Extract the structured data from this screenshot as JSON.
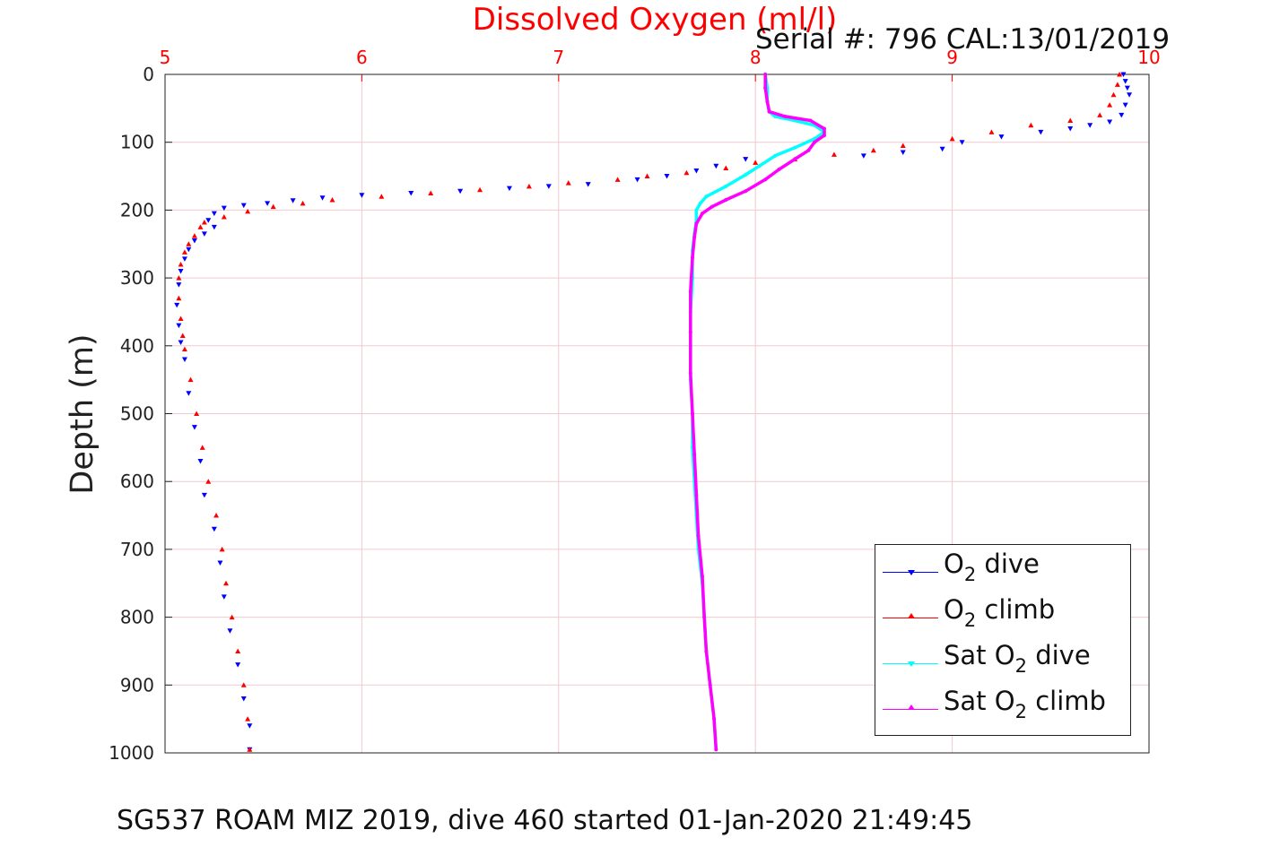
{
  "chart_data": {
    "type": "scatter",
    "title": "Dissolved Oxygen (ml/l)",
    "annotation": "Serial #: 796  CAL:13/01/2019",
    "caption": "SG537 ROAM MIZ 2019, dive 460 started 01-Jan-2020 21:49:45",
    "ylabel": "Depth (m)",
    "xlim": [
      5,
      10
    ],
    "ylim": [
      0,
      1000
    ],
    "y_reversed": true,
    "x_axis_location": "top",
    "grid": true,
    "xticks": [
      "5",
      "6",
      "7",
      "8",
      "9",
      "10"
    ],
    "yticks": [
      "0",
      "100",
      "200",
      "300",
      "400",
      "500",
      "600",
      "700",
      "800",
      "900",
      "1000"
    ],
    "legend": {
      "placement": "lower-right",
      "entries": [
        {
          "prefix": "O",
          "sub": "2",
          "suffix": " dive"
        },
        {
          "prefix": "O",
          "sub": "2",
          "suffix": " climb"
        },
        {
          "prefix": "Sat O",
          "sub": "2",
          "suffix": " dive"
        },
        {
          "prefix": "Sat O",
          "sub": "2",
          "suffix": " climb"
        }
      ]
    },
    "colors": {
      "o2_dive": "#0000ff",
      "o2_climb": "#ff0000",
      "sat_dive": "#00ffff",
      "sat_climb": "#ff00ff",
      "title": "#ff0000",
      "xtick": "#ff0000",
      "grid": "#f2c9cf"
    },
    "series": [
      {
        "name": "O2 dive",
        "color": "#0000ff",
        "marker": "triangle-down",
        "points": [
          [
            9.87,
            0
          ],
          [
            9.88,
            10
          ],
          [
            9.89,
            20
          ],
          [
            9.9,
            30
          ],
          [
            9.88,
            45
          ],
          [
            9.86,
            60
          ],
          [
            9.8,
            70
          ],
          [
            9.7,
            75
          ],
          [
            9.6,
            80
          ],
          [
            9.45,
            85
          ],
          [
            9.25,
            92
          ],
          [
            9.05,
            100
          ],
          [
            8.95,
            110
          ],
          [
            8.75,
            115
          ],
          [
            8.55,
            120
          ],
          [
            7.95,
            125
          ],
          [
            7.8,
            135
          ],
          [
            7.7,
            142
          ],
          [
            7.55,
            150
          ],
          [
            7.4,
            155
          ],
          [
            7.15,
            162
          ],
          [
            6.95,
            165
          ],
          [
            6.75,
            168
          ],
          [
            6.5,
            172
          ],
          [
            6.25,
            175
          ],
          [
            6.0,
            178
          ],
          [
            5.8,
            182
          ],
          [
            5.65,
            186
          ],
          [
            5.52,
            190
          ],
          [
            5.4,
            193
          ],
          [
            5.3,
            197
          ],
          [
            5.25,
            205
          ],
          [
            5.22,
            215
          ],
          [
            5.25,
            225
          ],
          [
            5.2,
            235
          ],
          [
            5.15,
            245
          ],
          [
            5.12,
            258
          ],
          [
            5.1,
            272
          ],
          [
            5.08,
            290
          ],
          [
            5.07,
            310
          ],
          [
            5.06,
            340
          ],
          [
            5.07,
            370
          ],
          [
            5.08,
            395
          ],
          [
            5.1,
            420
          ],
          [
            5.12,
            470
          ],
          [
            5.15,
            520
          ],
          [
            5.18,
            570
          ],
          [
            5.2,
            620
          ],
          [
            5.25,
            670
          ],
          [
            5.28,
            720
          ],
          [
            5.3,
            770
          ],
          [
            5.33,
            820
          ],
          [
            5.37,
            870
          ],
          [
            5.4,
            920
          ],
          [
            5.43,
            960
          ],
          [
            5.43,
            995
          ]
        ]
      },
      {
        "name": "O2 climb",
        "color": "#ff0000",
        "marker": "triangle-up",
        "points": [
          [
            9.85,
            0
          ],
          [
            9.84,
            15
          ],
          [
            9.82,
            30
          ],
          [
            9.8,
            45
          ],
          [
            9.75,
            60
          ],
          [
            9.6,
            68
          ],
          [
            9.4,
            75
          ],
          [
            9.2,
            85
          ],
          [
            9.0,
            95
          ],
          [
            8.75,
            105
          ],
          [
            8.6,
            112
          ],
          [
            8.4,
            118
          ],
          [
            8.2,
            125
          ],
          [
            8.0,
            130
          ],
          [
            7.85,
            138
          ],
          [
            7.65,
            145
          ],
          [
            7.45,
            150
          ],
          [
            7.3,
            155
          ],
          [
            7.05,
            160
          ],
          [
            6.85,
            165
          ],
          [
            6.6,
            170
          ],
          [
            6.35,
            175
          ],
          [
            6.1,
            180
          ],
          [
            5.85,
            185
          ],
          [
            5.7,
            190
          ],
          [
            5.55,
            195
          ],
          [
            5.42,
            202
          ],
          [
            5.3,
            210
          ],
          [
            5.2,
            218
          ],
          [
            5.18,
            225
          ],
          [
            5.15,
            238
          ],
          [
            5.12,
            250
          ],
          [
            5.1,
            262
          ],
          [
            5.08,
            280
          ],
          [
            5.07,
            300
          ],
          [
            5.07,
            330
          ],
          [
            5.08,
            360
          ],
          [
            5.09,
            385
          ],
          [
            5.1,
            405
          ],
          [
            5.13,
            450
          ],
          [
            5.16,
            500
          ],
          [
            5.19,
            550
          ],
          [
            5.22,
            600
          ],
          [
            5.26,
            650
          ],
          [
            5.29,
            700
          ],
          [
            5.31,
            750
          ],
          [
            5.34,
            800
          ],
          [
            5.37,
            850
          ],
          [
            5.4,
            900
          ],
          [
            5.42,
            950
          ],
          [
            5.43,
            995
          ]
        ]
      },
      {
        "name": "Sat O2 dive",
        "color": "#00ffff",
        "marker": "line",
        "points": [
          [
            8.05,
            0
          ],
          [
            8.06,
            20
          ],
          [
            8.06,
            40
          ],
          [
            8.07,
            55
          ],
          [
            8.1,
            62
          ],
          [
            8.2,
            68
          ],
          [
            8.3,
            75
          ],
          [
            8.35,
            85
          ],
          [
            8.3,
            95
          ],
          [
            8.2,
            108
          ],
          [
            8.1,
            120
          ],
          [
            8.02,
            135
          ],
          [
            7.95,
            148
          ],
          [
            7.85,
            165
          ],
          [
            7.75,
            180
          ],
          [
            7.72,
            190
          ],
          [
            7.7,
            200
          ],
          [
            7.7,
            215
          ],
          [
            7.69,
            235
          ],
          [
            7.68,
            260
          ],
          [
            7.68,
            300
          ],
          [
            7.67,
            350
          ],
          [
            7.67,
            400
          ],
          [
            7.67,
            450
          ],
          [
            7.68,
            500
          ],
          [
            7.68,
            550
          ],
          [
            7.69,
            600
          ],
          [
            7.7,
            650
          ],
          [
            7.71,
            700
          ],
          [
            7.73,
            750
          ],
          [
            7.74,
            800
          ],
          [
            7.75,
            850
          ],
          [
            7.77,
            900
          ],
          [
            7.79,
            950
          ],
          [
            7.8,
            995
          ]
        ]
      },
      {
        "name": "Sat O2 climb",
        "color": "#ff00ff",
        "marker": "line",
        "points": [
          [
            8.05,
            0
          ],
          [
            8.05,
            20
          ],
          [
            8.06,
            40
          ],
          [
            8.07,
            55
          ],
          [
            8.15,
            62
          ],
          [
            8.28,
            68
          ],
          [
            8.35,
            80
          ],
          [
            8.35,
            90
          ],
          [
            8.3,
            100
          ],
          [
            8.27,
            112
          ],
          [
            8.2,
            125
          ],
          [
            8.12,
            140
          ],
          [
            8.05,
            155
          ],
          [
            7.95,
            172
          ],
          [
            7.85,
            185
          ],
          [
            7.78,
            195
          ],
          [
            7.73,
            205
          ],
          [
            7.7,
            220
          ],
          [
            7.69,
            240
          ],
          [
            7.68,
            270
          ],
          [
            7.67,
            320
          ],
          [
            7.67,
            380
          ],
          [
            7.67,
            440
          ],
          [
            7.68,
            500
          ],
          [
            7.69,
            560
          ],
          [
            7.7,
            620
          ],
          [
            7.71,
            680
          ],
          [
            7.73,
            740
          ],
          [
            7.74,
            800
          ],
          [
            7.75,
            850
          ],
          [
            7.77,
            900
          ],
          [
            7.79,
            950
          ],
          [
            7.8,
            995
          ]
        ]
      }
    ]
  }
}
